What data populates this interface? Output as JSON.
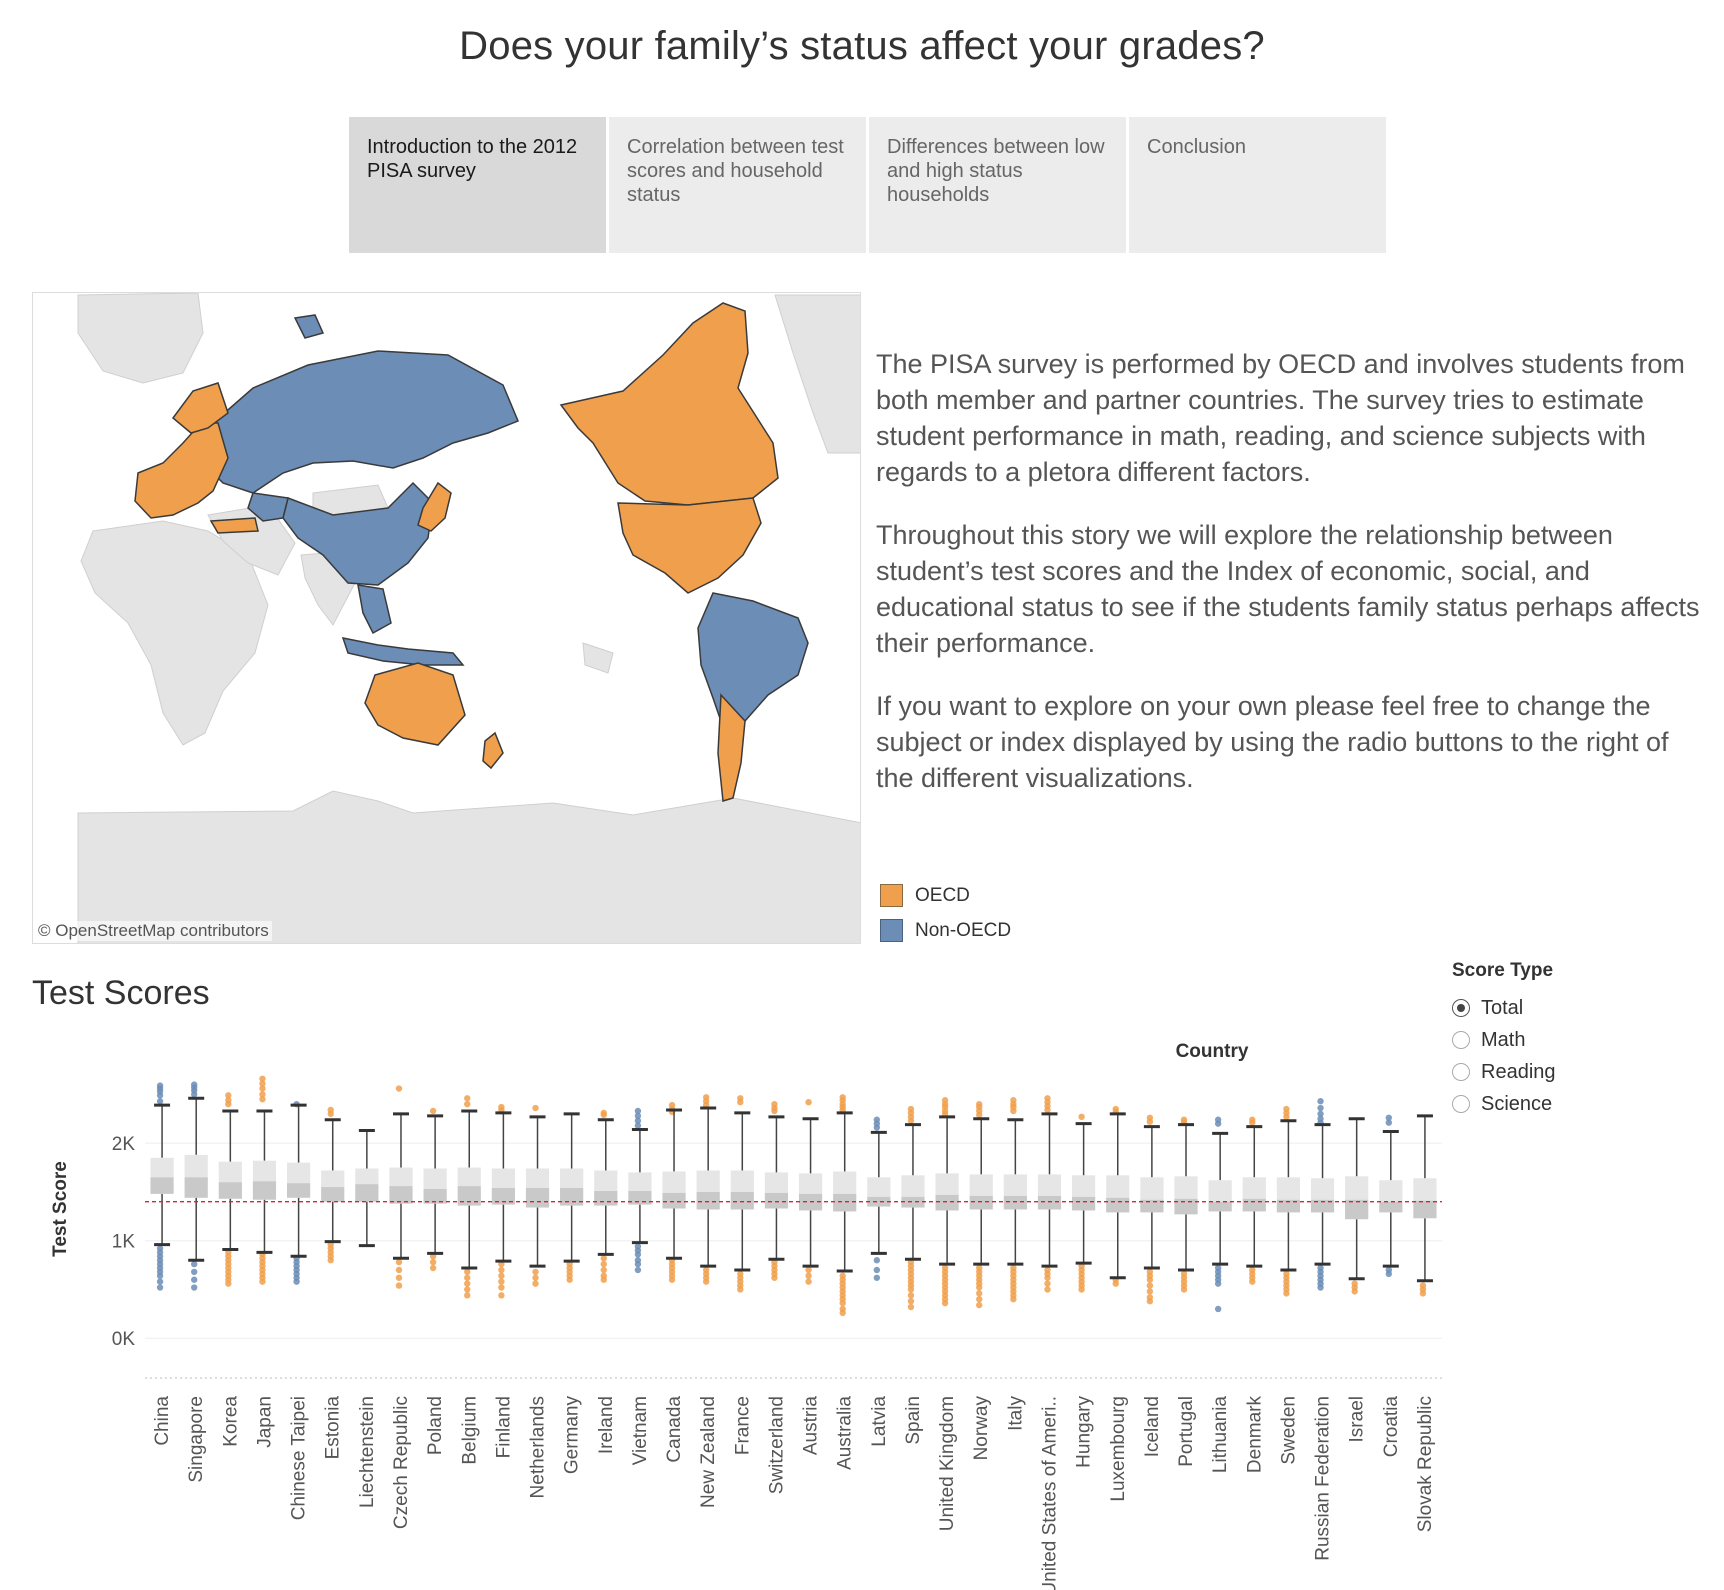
{
  "page": {
    "title": "Does your family’s status affect your grades?"
  },
  "tabs": [
    {
      "label": "Introduction to the 2012 PISA survey",
      "active": true
    },
    {
      "label": "Correlation between test scores and household status",
      "active": false
    },
    {
      "label": "Differences between low and high status households",
      "active": false
    },
    {
      "label": "Conclusion",
      "active": false
    }
  ],
  "map": {
    "attribution": "© OpenStreetMap contributors",
    "colors": {
      "oecd": "#f0a04c",
      "non_oecd": "#6b8db6",
      "land": "#e4e4e4",
      "sea": "#ffffff",
      "border": "#444444"
    }
  },
  "intro": {
    "paragraphs": [
      "The PISA survey is performed by OECD and involves students from both member and partner countries. The survey tries to estimate student performance in math, reading, and science subjects with regards to a pletora different factors.",
      "Throughout this story we will explore the relationship between student’s test scores and the  Index of economic, social, and educational status to see if the students family status perhaps affects their performance.",
      "If you want to explore on your own please feel free to change the subject or index displayed by using the radio buttons to the right of the different visualizations."
    ]
  },
  "legend": {
    "items": [
      {
        "label": "OECD",
        "color": "#f0a04c"
      },
      {
        "label": "Non-OECD",
        "color": "#6b8db6"
      }
    ]
  },
  "section": {
    "title": "Test Scores"
  },
  "score_filter": {
    "title": "Score Type",
    "options": [
      "Total",
      "Math",
      "Reading",
      "Science"
    ],
    "selected": "Total"
  },
  "chart_data": {
    "type": "boxplot",
    "title": "",
    "column_header": "Country",
    "ylabel": "Test Score",
    "yticks": [
      {
        "value": 0,
        "label": "0K"
      },
      {
        "value": 1000,
        "label": "1K"
      },
      {
        "value": 2000,
        "label": "2K"
      }
    ],
    "ylim": [
      -100,
      2750
    ],
    "reference_line": {
      "value": 1400,
      "style": "dashed",
      "color": "#d62728"
    },
    "grid": true,
    "colors": {
      "oecd": "#f0a04c",
      "non_oecd": "#6b8db6"
    },
    "categories": [
      "China",
      "Singapore",
      "Korea",
      "Japan",
      "Chinese Taipei",
      "Estonia",
      "Liechtenstein",
      "Czech Republic",
      "Poland",
      "Belgium",
      "Finland",
      "Netherlands",
      "Germany",
      "Ireland",
      "Vietnam",
      "Canada",
      "New Zealand",
      "France",
      "Switzerland",
      "Austria",
      "Australia",
      "Latvia",
      "Spain",
      "United Kingdom",
      "Norway",
      "Italy",
      "United States of Ameri..",
      "Hungary",
      "Luxembourg",
      "Iceland",
      "Portugal",
      "Lithuania",
      "Denmark",
      "Sweden",
      "Russian Federation",
      "Israel",
      "Croatia",
      "Slovak Republic"
    ],
    "group": [
      "non_oecd",
      "non_oecd",
      "oecd",
      "oecd",
      "non_oecd",
      "oecd",
      "oecd",
      "oecd",
      "oecd",
      "oecd",
      "oecd",
      "oecd",
      "oecd",
      "oecd",
      "non_oecd",
      "oecd",
      "oecd",
      "oecd",
      "oecd",
      "oecd",
      "oecd",
      "non_oecd",
      "oecd",
      "oecd",
      "oecd",
      "oecd",
      "oecd",
      "oecd",
      "oecd",
      "oecd",
      "oecd",
      "non_oecd",
      "oecd",
      "oecd",
      "non_oecd",
      "oecd",
      "non_oecd",
      "oecd"
    ],
    "whisker_high": [
      2390,
      2460,
      2330,
      2330,
      2390,
      2240,
      2130,
      2300,
      2280,
      2330,
      2310,
      2270,
      2300,
      2240,
      2140,
      2340,
      2360,
      2310,
      2270,
      2250,
      2310,
      2110,
      2190,
      2270,
      2250,
      2240,
      2300,
      2200,
      2300,
      2170,
      2190,
      2100,
      2170,
      2230,
      2190,
      2250,
      2120,
      2280
    ],
    "q3": [
      1850,
      1880,
      1810,
      1820,
      1800,
      1720,
      1740,
      1750,
      1740,
      1750,
      1740,
      1740,
      1740,
      1720,
      1700,
      1710,
      1720,
      1720,
      1700,
      1690,
      1710,
      1650,
      1670,
      1690,
      1680,
      1680,
      1680,
      1670,
      1670,
      1650,
      1660,
      1620,
      1650,
      1650,
      1640,
      1660,
      1620,
      1640
    ],
    "median": [
      1650,
      1650,
      1600,
      1610,
      1590,
      1550,
      1580,
      1560,
      1530,
      1560,
      1540,
      1540,
      1540,
      1510,
      1510,
      1490,
      1500,
      1500,
      1490,
      1480,
      1480,
      1450,
      1450,
      1470,
      1460,
      1460,
      1460,
      1450,
      1440,
      1420,
      1430,
      1400,
      1430,
      1420,
      1420,
      1420,
      1400,
      1410
    ],
    "q1": [
      1480,
      1440,
      1430,
      1420,
      1440,
      1400,
      1400,
      1380,
      1380,
      1360,
      1370,
      1340,
      1360,
      1360,
      1370,
      1330,
      1320,
      1320,
      1330,
      1310,
      1300,
      1350,
      1340,
      1310,
      1320,
      1320,
      1320,
      1310,
      1290,
      1290,
      1270,
      1300,
      1300,
      1290,
      1290,
      1220,
      1290,
      1230
    ],
    "whisker_low": [
      960,
      800,
      910,
      880,
      840,
      990,
      950,
      820,
      870,
      720,
      790,
      740,
      790,
      860,
      980,
      820,
      740,
      700,
      810,
      740,
      690,
      870,
      810,
      760,
      760,
      760,
      740,
      770,
      620,
      720,
      700,
      760,
      740,
      700,
      760,
      610,
      740,
      590
    ],
    "outliers_high": [
      [
        2590,
        2560,
        2530,
        2490,
        2430
      ],
      [
        2600,
        2570,
        2540,
        2500
      ],
      [
        2490,
        2440,
        2400
      ],
      [
        2660,
        2610,
        2560,
        2500,
        2450
      ],
      [
        2400
      ],
      [
        2340,
        2300
      ],
      [],
      [
        2560
      ],
      [
        2330
      ],
      [
        2460,
        2400
      ],
      [
        2370,
        2340
      ],
      [
        2360
      ],
      [],
      [
        2310,
        2290
      ],
      [
        2330,
        2280,
        2230,
        2180
      ],
      [
        2390,
        2350,
        2320
      ],
      [
        2470,
        2430,
        2390
      ],
      [
        2460,
        2420
      ],
      [
        2400,
        2360,
        2330
      ],
      [
        2420
      ],
      [
        2470,
        2440,
        2400,
        2370,
        2340
      ],
      [
        2240,
        2200,
        2160
      ],
      [
        2350,
        2310,
        2270,
        2230
      ],
      [
        2440,
        2400,
        2370,
        2330,
        2300
      ],
      [
        2400,
        2370,
        2330,
        2290
      ],
      [
        2440,
        2400,
        2370,
        2330
      ],
      [
        2460,
        2420,
        2380,
        2340
      ],
      [
        2270
      ],
      [
        2350,
        2320
      ],
      [
        2260,
        2220
      ],
      [
        2240,
        2210
      ],
      [
        2240,
        2200
      ],
      [
        2240,
        2210
      ],
      [
        2350,
        2310,
        2270
      ],
      [
        2430,
        2360,
        2300,
        2250,
        2210
      ],
      [],
      [
        2260,
        2210
      ],
      []
    ],
    "outliers_low": [
      [
        920,
        880,
        840,
        800,
        760,
        720,
        680,
        640,
        580,
        520
      ],
      [
        760,
        680,
        600,
        520
      ],
      [
        880,
        840,
        800,
        760,
        720,
        680,
        640,
        600,
        560
      ],
      [
        860,
        820,
        780,
        740,
        700,
        660,
        620,
        580
      ],
      [
        820,
        780,
        740,
        700,
        660,
        620,
        580
      ],
      [
        960,
        920,
        880,
        840,
        800
      ],
      [],
      [
        780,
        700,
        620,
        540
      ],
      [
        840,
        780,
        720
      ],
      [
        680,
        620,
        560,
        500,
        440
      ],
      [
        760,
        700,
        640,
        580,
        520,
        440
      ],
      [
        680,
        620,
        560
      ],
      [
        760,
        720,
        680,
        640,
        600
      ],
      [
        820,
        760,
        700,
        640,
        600
      ],
      [
        940,
        900,
        860,
        800,
        760,
        700
      ],
      [
        800,
        760,
        720,
        680,
        640,
        600
      ],
      [
        700,
        660,
        620,
        580
      ],
      [
        660,
        620,
        580,
        540,
        500
      ],
      [
        780,
        740,
        700,
        660,
        620
      ],
      [
        700,
        640,
        580
      ],
      [
        640,
        600,
        560,
        520,
        480,
        440,
        400,
        360,
        300,
        260
      ],
      [
        800,
        700,
        620
      ],
      [
        780,
        740,
        700,
        660,
        620,
        580,
        540,
        500,
        440,
        380,
        320
      ],
      [
        720,
        680,
        640,
        600,
        560,
        520,
        480,
        440,
        400,
        360
      ],
      [
        720,
        680,
        640,
        600,
        560,
        520,
        460,
        400,
        340
      ],
      [
        720,
        680,
        640,
        600,
        560,
        520,
        480,
        440,
        400
      ],
      [
        700,
        660,
        620,
        560,
        500
      ],
      [
        740,
        700,
        660,
        620,
        580,
        540,
        500
      ],
      [
        600,
        560
      ],
      [
        680,
        640,
        600,
        540,
        480,
        420,
        380
      ],
      [
        660,
        620,
        580,
        540,
        500
      ],
      [
        720,
        680,
        640,
        600,
        560,
        300
      ],
      [
        700,
        660,
        620,
        580
      ],
      [
        660,
        620,
        580,
        540,
        500,
        460
      ],
      [
        720,
        680,
        640,
        600,
        560,
        520
      ],
      [
        560,
        520,
        480
      ],
      [
        700,
        660
      ],
      [
        540,
        500,
        460
      ]
    ]
  }
}
